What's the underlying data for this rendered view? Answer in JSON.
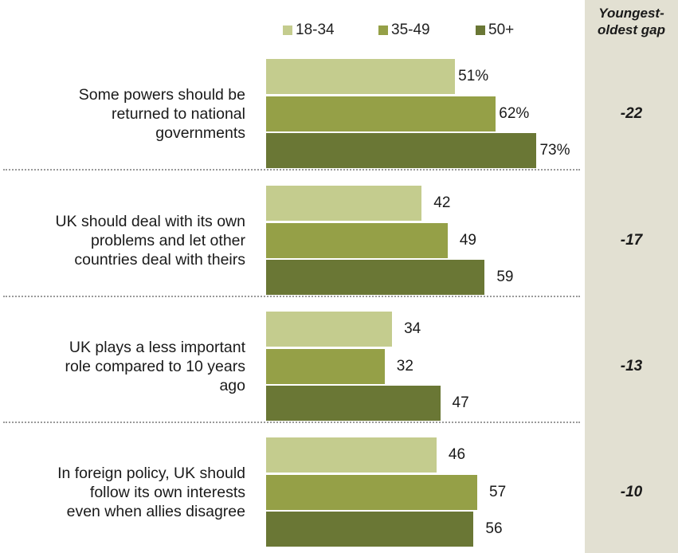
{
  "colors": {
    "s1": "#c4cc8e",
    "s2": "#95a047",
    "s3": "#6a7735",
    "gap_panel": "#e2e0d2"
  },
  "chart_data": {
    "type": "bar",
    "orientation": "horizontal",
    "title": "",
    "gap_header_line1": "Youngest-",
    "gap_header_line2": "oldest gap",
    "legend_position": "top",
    "xlim": [
      0,
      100
    ],
    "grid": false,
    "series": [
      {
        "name": "18-34",
        "values": [
          51,
          42,
          34,
          46
        ]
      },
      {
        "name": "35-49",
        "values": [
          62,
          49,
          32,
          57
        ]
      },
      {
        "name": "50+",
        "values": [
          73,
          59,
          47,
          56
        ]
      }
    ],
    "value_labels": [
      [
        "51%",
        "62%",
        "73%"
      ],
      [
        "42",
        "49",
        "59"
      ],
      [
        "34",
        "32",
        "47"
      ],
      [
        "46",
        "57",
        "56"
      ]
    ],
    "categories": [
      {
        "lines": [
          "Some powers should be",
          "returned to national",
          "governments"
        ]
      },
      {
        "lines": [
          "UK should deal with its own",
          "problems and let other",
          "countries deal with theirs"
        ]
      },
      {
        "lines": [
          "UK plays a less important",
          "role compared to 10 years",
          "ago"
        ]
      },
      {
        "lines": [
          "In foreign policy, UK should",
          "follow its own interests",
          "even when allies disagree"
        ]
      }
    ],
    "gaps": [
      "-22",
      "-17",
      "-13",
      "-10"
    ]
  }
}
